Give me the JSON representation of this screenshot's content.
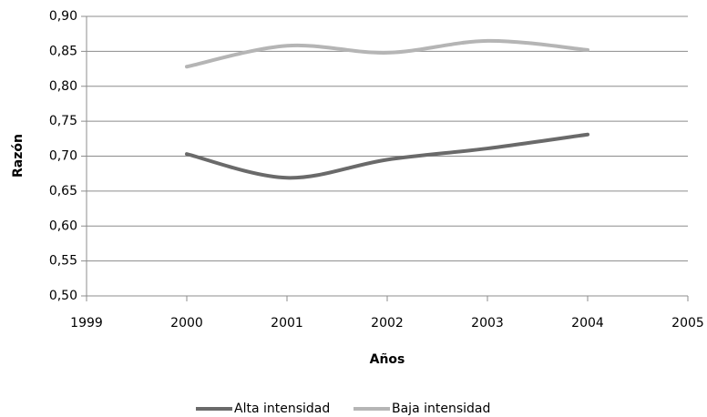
{
  "chart_data": {
    "type": "line",
    "x_label": "Años",
    "y_label": "Razón",
    "x": [
      2000,
      2001,
      2002,
      2003,
      2004
    ],
    "series": [
      {
        "name": "Alta intensidad",
        "color": "#6a6a6a",
        "values": [
          0.703,
          0.669,
          0.695,
          0.711,
          0.731
        ]
      },
      {
        "name": "Baja intensidad",
        "color": "#b5b5b5",
        "values": [
          0.828,
          0.858,
          0.848,
          0.865,
          0.852
        ]
      }
    ],
    "xlim": [
      1999,
      2005
    ],
    "xticks": [
      1999,
      2000,
      2001,
      2002,
      2003,
      2004,
      2005
    ],
    "ylim": [
      0.5,
      0.9
    ],
    "yticks": [
      {
        "value": 0.5,
        "label": "0,50"
      },
      {
        "value": 0.55,
        "label": "0,55"
      },
      {
        "value": 0.6,
        "label": "0,60"
      },
      {
        "value": 0.65,
        "label": "0,65"
      },
      {
        "value": 0.7,
        "label": "0,70"
      },
      {
        "value": 0.75,
        "label": "0,75"
      },
      {
        "value": 0.8,
        "label": "0,80"
      },
      {
        "value": 0.85,
        "label": "0,85"
      },
      {
        "value": 0.9,
        "label": "0,90"
      }
    ],
    "grid": true,
    "legend": "bottom"
  }
}
